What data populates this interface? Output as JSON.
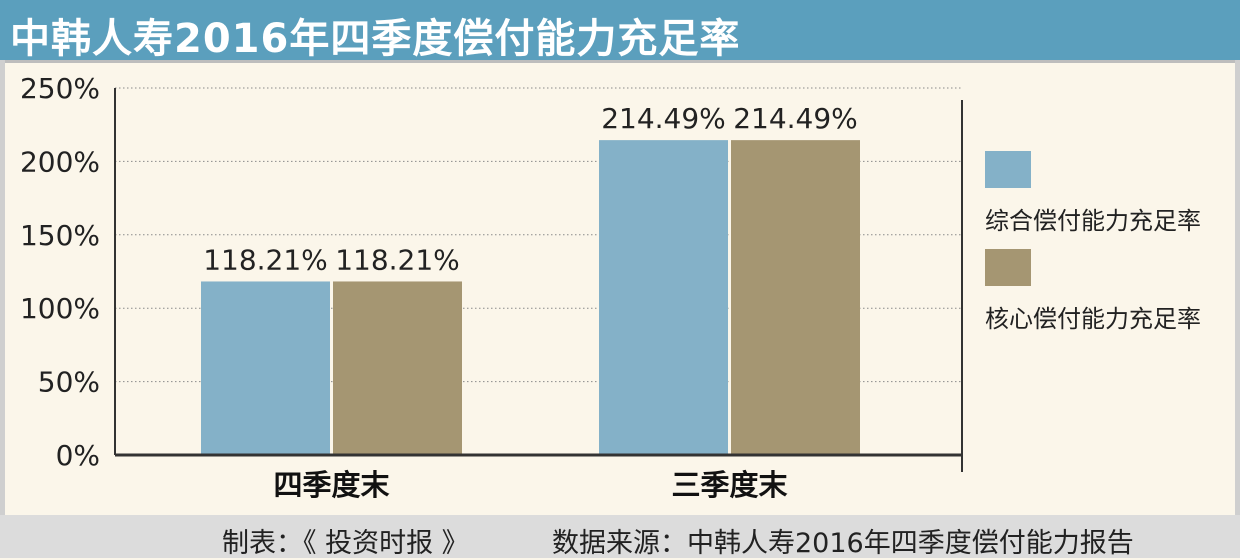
{
  "title": "中韩人寿2016年四季度偿付能力充足率",
  "chart_data": {
    "type": "bar",
    "categories": [
      "四季度末",
      "三季度末"
    ],
    "series": [
      {
        "name": "综合偿付能力充足率",
        "values": [
          118.21,
          214.49
        ],
        "color": "#84b1c8"
      },
      {
        "name": "核心偿付能力充足率",
        "values": [
          118.21,
          214.49
        ],
        "color": "#a59672"
      }
    ],
    "data_labels": [
      [
        "118.21%",
        "214.49%"
      ],
      [
        "118.21%",
        "214.49%"
      ]
    ],
    "y_ticks": [
      "0%",
      "50%",
      "100%",
      "150%",
      "200%",
      "250%"
    ],
    "ylim": [
      0,
      250
    ],
    "grid": true,
    "legend_position": "right"
  },
  "footer": {
    "maker": "制表：《 投资时报 》",
    "source": "数据来源：中韩人寿2016年四季度偿付能力报告"
  }
}
